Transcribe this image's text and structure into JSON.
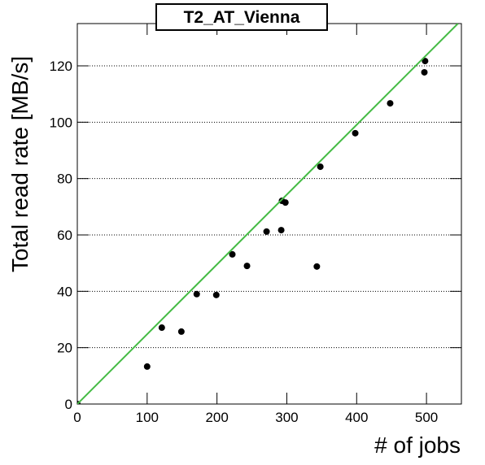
{
  "chart_data": {
    "type": "scatter",
    "title": "T2_AT_Vienna",
    "xlabel": "# of jobs",
    "ylabel": "Total read rate [MB/s]",
    "xlim": [
      0,
      550
    ],
    "ylim": [
      0,
      135
    ],
    "xticks": [
      0,
      100,
      200,
      300,
      400,
      500
    ],
    "yticks": [
      0,
      20,
      40,
      60,
      80,
      100,
      120
    ],
    "grid": true,
    "series": [
      {
        "color": "#000000",
        "x": [
          0,
          100,
          121,
          149,
          171,
          199,
          222,
          243,
          271,
          292,
          293,
          298,
          343,
          348,
          398,
          448,
          497,
          498
        ],
        "values": [
          0,
          13.3,
          27.1,
          25.7,
          39,
          38.7,
          53.1,
          49,
          61.2,
          61.7,
          72.1,
          71.5,
          48.8,
          84.2,
          96.1,
          106.7,
          117.7,
          121.7
        ]
      },
      {
        "type": "line",
        "color": "#44bb44",
        "x": [
          0,
          545
        ],
        "values": [
          0,
          135
        ]
      }
    ]
  }
}
